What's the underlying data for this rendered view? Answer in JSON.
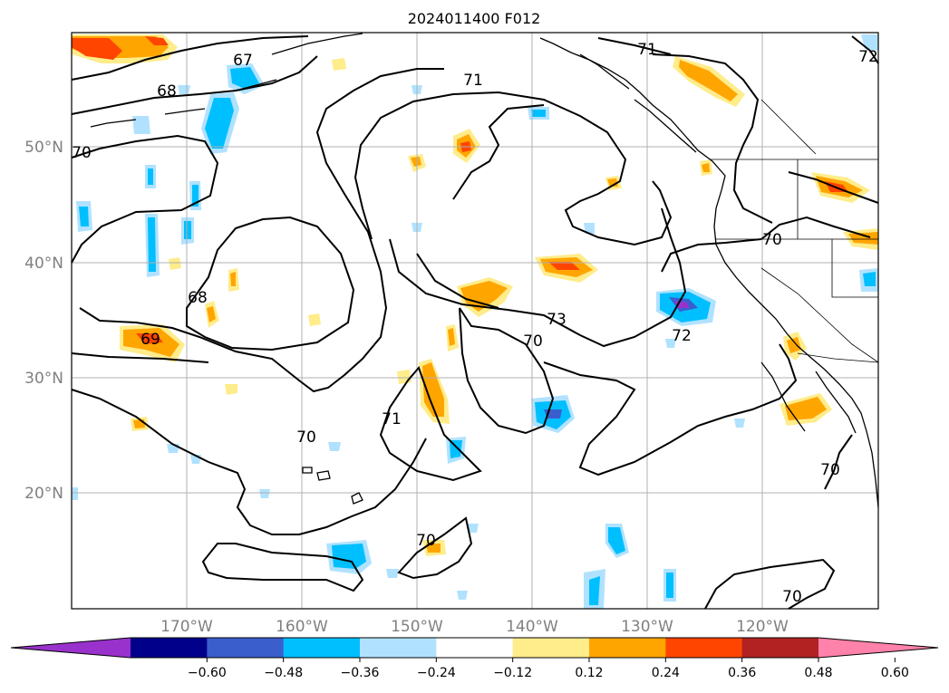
{
  "title": "2024011400 F012",
  "lon_labels": [
    "170°W",
    "160°W",
    "150°W",
    "140°W",
    "130°W",
    "120°W"
  ],
  "lat_labels": [
    "50°N",
    "40°N",
    "30°N",
    "20°N"
  ],
  "colorbar": {
    "colors": [
      "#9932cc",
      "#00008b",
      "#3a5fcd",
      "#00bfff",
      "#b0e2ff",
      "#ffffff",
      "#ffec8b",
      "#ffa500",
      "#ff4500",
      "#b22222",
      "#ff82ab"
    ],
    "ticks": [
      "−0.60",
      "−0.48",
      "−0.36",
      "−0.24",
      "−0.12",
      "0.12",
      "0.24",
      "0.36",
      "0.48",
      "0.60"
    ]
  },
  "contour_labels": [
    "67",
    "68",
    "70",
    "71",
    "71",
    "72",
    "68",
    "69",
    "70",
    "73",
    "70",
    "71",
    "72",
    "70",
    "70",
    "70",
    "70"
  ]
}
